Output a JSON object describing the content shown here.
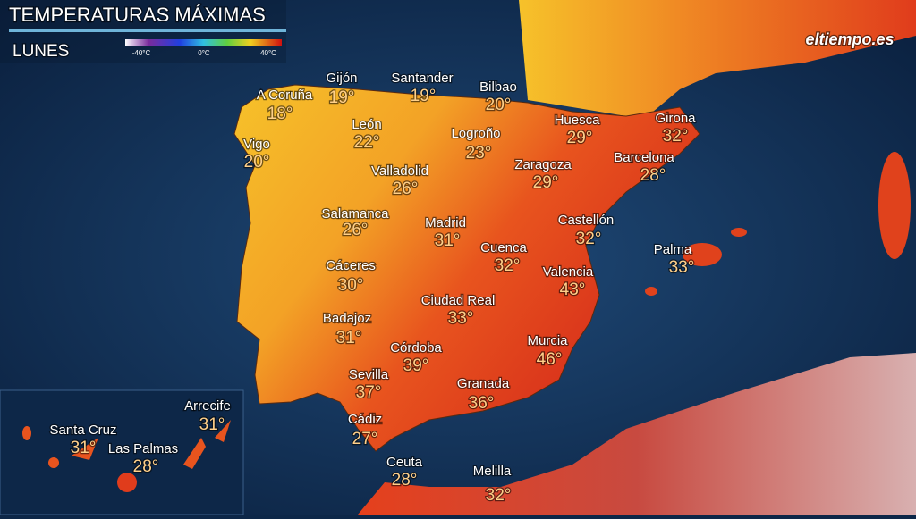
{
  "header": {
    "title": "TEMPERATURAS MÁXIMAS",
    "day": "LUNES",
    "logo": "eltiempo.es"
  },
  "legend": {
    "labels": [
      "-40°C",
      "0°C",
      "40°C"
    ]
  },
  "cities": [
    {
      "name": "A Coruña",
      "temp": "18°"
    },
    {
      "name": "Gijón",
      "temp": "19°"
    },
    {
      "name": "Santander",
      "temp": "19°"
    },
    {
      "name": "Bilbao",
      "temp": "20°"
    },
    {
      "name": "Vigo",
      "temp": "20°"
    },
    {
      "name": "León",
      "temp": "22°"
    },
    {
      "name": "Logroño",
      "temp": "23°"
    },
    {
      "name": "Huesca",
      "temp": "29°"
    },
    {
      "name": "Girona",
      "temp": "32°"
    },
    {
      "name": "Barcelona",
      "temp": "28°"
    },
    {
      "name": "Valladolid",
      "temp": "26°"
    },
    {
      "name": "Zaragoza",
      "temp": "29°"
    },
    {
      "name": "Salamanca",
      "temp": "26°"
    },
    {
      "name": "Madrid",
      "temp": "31°"
    },
    {
      "name": "Castellón",
      "temp": "32°"
    },
    {
      "name": "Cuenca",
      "temp": "32°"
    },
    {
      "name": "Palma",
      "temp": "33°"
    },
    {
      "name": "Cáceres",
      "temp": "30°"
    },
    {
      "name": "Valencia",
      "temp": "43°"
    },
    {
      "name": "Ciudad Real",
      "temp": "33°"
    },
    {
      "name": "Badajoz",
      "temp": "31°"
    },
    {
      "name": "Murcia",
      "temp": "46°"
    },
    {
      "name": "Córdoba",
      "temp": "39°"
    },
    {
      "name": "Sevilla",
      "temp": "37°"
    },
    {
      "name": "Granada",
      "temp": "36°"
    },
    {
      "name": "Cádiz",
      "temp": "27°"
    },
    {
      "name": "Ceuta",
      "temp": "28°"
    },
    {
      "name": "Melilla",
      "temp": "32°"
    },
    {
      "name": "Arrecife",
      "temp": "31°"
    },
    {
      "name": "Santa Cruz",
      "temp": "31°"
    },
    {
      "name": "Las Palmas",
      "temp": "28°"
    }
  ]
}
